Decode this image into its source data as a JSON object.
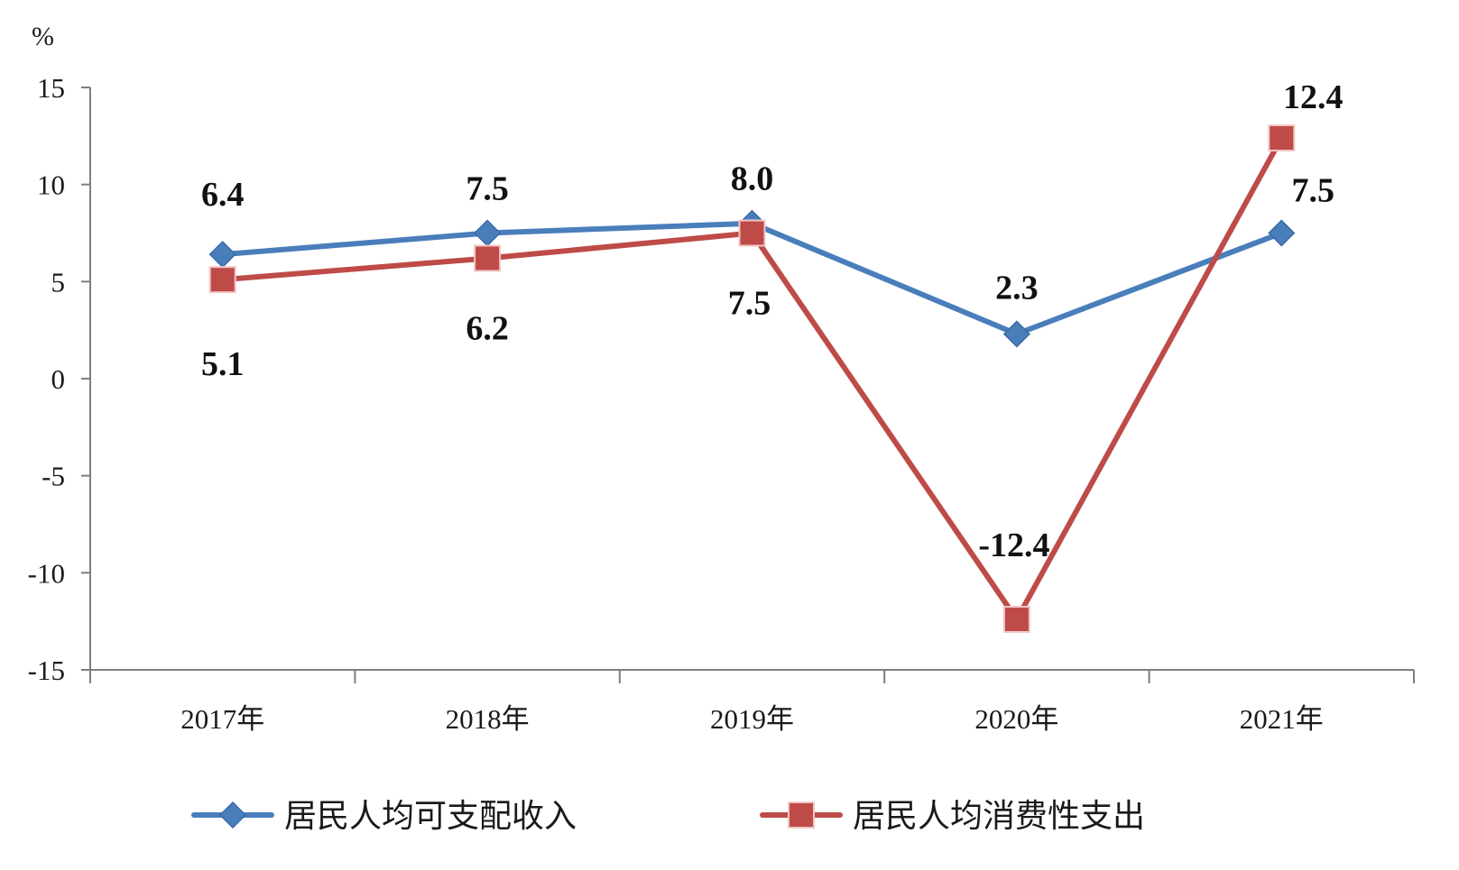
{
  "chart_data": {
    "type": "line",
    "unit_label": "%",
    "categories": [
      "2017年",
      "2018年",
      "2019年",
      "2020年",
      "2021年"
    ],
    "ylim": [
      -15,
      15
    ],
    "yticks": [
      15,
      10,
      5,
      0,
      -5,
      -10,
      -15
    ],
    "grid": false,
    "legend_position": "bottom",
    "series": [
      {
        "name": "居民人均可支配收入",
        "values": [
          6.4,
          7.5,
          8.0,
          2.3,
          7.5
        ],
        "labels": [
          "6.4",
          "7.5",
          "8.0",
          "2.3",
          "7.5"
        ],
        "color": "#4a7ebb",
        "marker": "diamond",
        "label_position": "above"
      },
      {
        "name": "居民人均消费性支出",
        "values": [
          5.1,
          6.2,
          7.5,
          -12.4,
          12.4
        ],
        "labels": [
          "5.1",
          "6.2",
          "7.5",
          "-12.4",
          "12.4"
        ],
        "color": "#be4b48",
        "marker": "square",
        "label_position": "mixed"
      }
    ]
  }
}
